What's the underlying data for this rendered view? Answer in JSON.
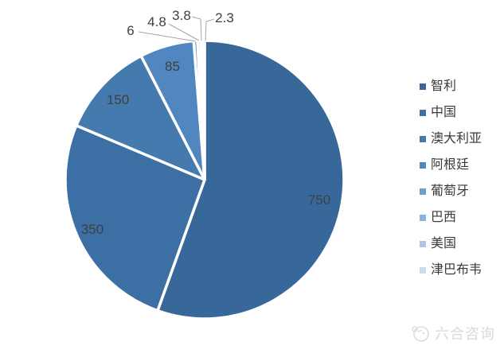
{
  "chart_data": {
    "type": "pie",
    "title": "",
    "legend_position": "right",
    "start_angle_deg": 0,
    "direction": "clockwise",
    "categories": [
      "智利",
      "中国",
      "澳大利亚",
      "阿根廷",
      "葡萄牙",
      "巴西",
      "美国",
      "津巴布韦"
    ],
    "values": [
      750,
      350,
      150,
      85,
      6,
      4.8,
      3.8,
      2.3
    ],
    "labels": [
      "750",
      "350",
      "150",
      "85",
      "6",
      "4.8",
      "3.8",
      "2.3"
    ],
    "colors": [
      "#38689a",
      "#3c6fa3",
      "#447aae",
      "#5187c1",
      "#6f9ecf",
      "#8db2da",
      "#abc7e5",
      "#cadbee"
    ],
    "label_color": "#404040",
    "leader_line_color": "#a6a6a6",
    "slice_border_color": "#ffffff"
  },
  "watermark": {
    "text": "六合咨询"
  }
}
